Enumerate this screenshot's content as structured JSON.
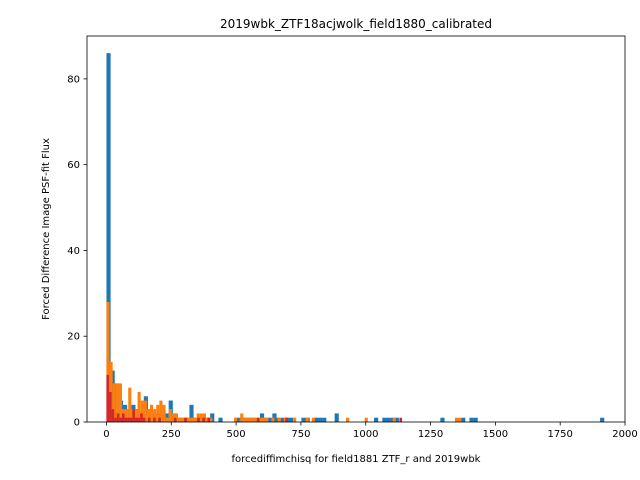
{
  "chart_data": {
    "type": "histogram",
    "title": "2019wbk_ZTF18acjwolk_field1880_calibrated",
    "xlabel": "forcediffimchisq for field1881 ZTF_r and 2019wbk",
    "ylabel": "Forced Difference Image PSF-fit Flux",
    "xlim": [
      -75,
      2000
    ],
    "ylim": [
      0,
      90
    ],
    "xticks": [
      0,
      250,
      500,
      750,
      1000,
      1250,
      1500,
      1750,
      2000
    ],
    "yticks": [
      0,
      20,
      40,
      60,
      80
    ],
    "grid": false,
    "legend": false,
    "series": [
      {
        "color": "#1f77b4",
        "bin_width": 16,
        "bins": [
          [
            8,
            86
          ],
          [
            24,
            12
          ],
          [
            40,
            9
          ],
          [
            56,
            5
          ],
          [
            72,
            4
          ],
          [
            88,
            3
          ],
          [
            104,
            4
          ],
          [
            120,
            3
          ],
          [
            136,
            2
          ],
          [
            152,
            6
          ],
          [
            168,
            3
          ],
          [
            184,
            2
          ],
          [
            200,
            2
          ],
          [
            216,
            1
          ],
          [
            232,
            2
          ],
          [
            248,
            5
          ],
          [
            264,
            2
          ],
          [
            280,
            1
          ],
          [
            296,
            1
          ],
          [
            312,
            1
          ],
          [
            328,
            4
          ],
          [
            344,
            1
          ],
          [
            360,
            1
          ],
          [
            376,
            1
          ],
          [
            392,
            1
          ],
          [
            408,
            2
          ],
          [
            440,
            1
          ],
          [
            504,
            1
          ],
          [
            520,
            1
          ],
          [
            536,
            1
          ],
          [
            552,
            1
          ],
          [
            568,
            1
          ],
          [
            600,
            2
          ],
          [
            616,
            1
          ],
          [
            632,
            1
          ],
          [
            648,
            2
          ],
          [
            664,
            1
          ],
          [
            680,
            1
          ],
          [
            696,
            1
          ],
          [
            712,
            1
          ],
          [
            760,
            1
          ],
          [
            776,
            1
          ],
          [
            808,
            1
          ],
          [
            824,
            1
          ],
          [
            840,
            1
          ],
          [
            888,
            2
          ],
          [
            1040,
            1
          ],
          [
            1072,
            1
          ],
          [
            1088,
            1
          ],
          [
            1104,
            1
          ],
          [
            1120,
            1
          ],
          [
            1296,
            1
          ],
          [
            1376,
            1
          ],
          [
            1408,
            1
          ],
          [
            1424,
            1
          ],
          [
            1912,
            1
          ]
        ]
      },
      {
        "color": "#ff7f0e",
        "bin_width": 12,
        "bins": [
          [
            6,
            28
          ],
          [
            18,
            14
          ],
          [
            30,
            9
          ],
          [
            42,
            9
          ],
          [
            54,
            9
          ],
          [
            66,
            3
          ],
          [
            78,
            3
          ],
          [
            90,
            8
          ],
          [
            102,
            3
          ],
          [
            114,
            3
          ],
          [
            126,
            7
          ],
          [
            138,
            5
          ],
          [
            150,
            5
          ],
          [
            162,
            3
          ],
          [
            174,
            4
          ],
          [
            186,
            3
          ],
          [
            198,
            4
          ],
          [
            210,
            5
          ],
          [
            222,
            4
          ],
          [
            234,
            1
          ],
          [
            246,
            3
          ],
          [
            258,
            2
          ],
          [
            270,
            2
          ],
          [
            282,
            1
          ],
          [
            294,
            1
          ],
          [
            306,
            1
          ],
          [
            318,
            1
          ],
          [
            330,
            1
          ],
          [
            342,
            1
          ],
          [
            354,
            2
          ],
          [
            366,
            2
          ],
          [
            378,
            2
          ],
          [
            390,
            1
          ],
          [
            402,
            1
          ],
          [
            498,
            1
          ],
          [
            522,
            2
          ],
          [
            534,
            1
          ],
          [
            546,
            1
          ],
          [
            558,
            1
          ],
          [
            570,
            1
          ],
          [
            582,
            1
          ],
          [
            594,
            1
          ],
          [
            606,
            1
          ],
          [
            618,
            1
          ],
          [
            642,
            1
          ],
          [
            666,
            1
          ],
          [
            690,
            1
          ],
          [
            726,
            1
          ],
          [
            774,
            1
          ],
          [
            798,
            1
          ],
          [
            930,
            1
          ],
          [
            1002,
            1
          ],
          [
            1110,
            1
          ],
          [
            1350,
            1
          ],
          [
            1362,
            1
          ]
        ]
      },
      {
        "color": "#d62728",
        "bin_width": 10,
        "bins": [
          [
            5,
            11
          ],
          [
            15,
            7
          ],
          [
            25,
            3
          ],
          [
            35,
            1
          ],
          [
            45,
            2
          ],
          [
            55,
            1
          ],
          [
            65,
            2
          ],
          [
            75,
            1
          ],
          [
            85,
            1
          ],
          [
            95,
            1
          ],
          [
            105,
            3
          ],
          [
            115,
            1
          ],
          [
            125,
            1
          ],
          [
            135,
            2
          ],
          [
            145,
            1
          ],
          [
            165,
            1
          ],
          [
            185,
            1
          ],
          [
            205,
            1
          ],
          [
            265,
            1
          ],
          [
            305,
            1
          ],
          [
            355,
            1
          ],
          [
            375,
            1
          ],
          [
            395,
            1
          ],
          [
            585,
            1
          ],
          [
            695,
            1
          ],
          [
            1135,
            1
          ]
        ]
      }
    ]
  }
}
